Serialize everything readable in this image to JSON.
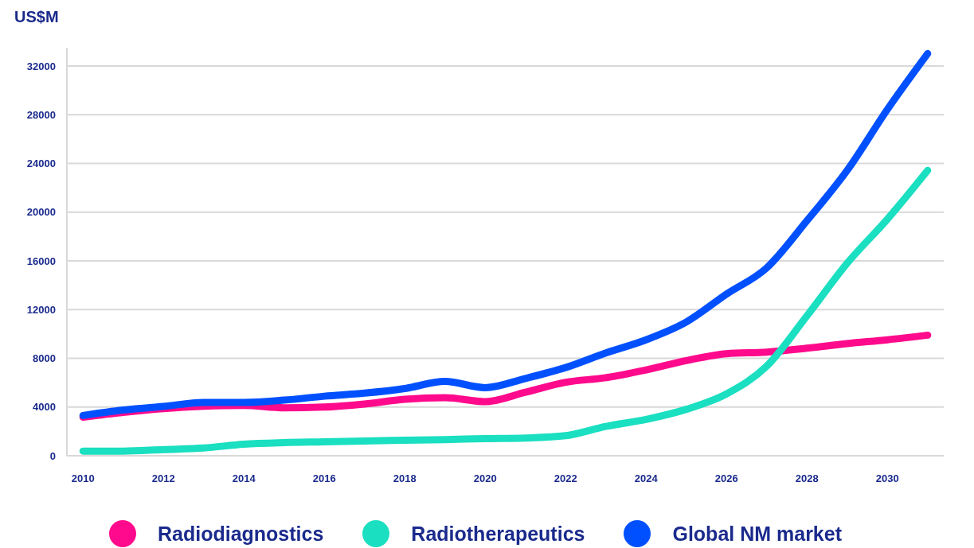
{
  "chart_data": {
    "type": "line",
    "ylabel": "US$M",
    "x": [
      2010,
      2011,
      2012,
      2013,
      2014,
      2015,
      2016,
      2017,
      2018,
      2019,
      2020,
      2021,
      2022,
      2023,
      2024,
      2025,
      2026,
      2027,
      2028,
      2029,
      2030,
      2031
    ],
    "series": [
      {
        "name": "Radiodiagnostics",
        "color": "#ff0a8c",
        "values": [
          3170,
          3560,
          3870,
          4060,
          4130,
          3940,
          4000,
          4250,
          4630,
          4760,
          4440,
          5210,
          6030,
          6410,
          7050,
          7810,
          8380,
          8510,
          8830,
          9210,
          9520,
          9900
        ]
      },
      {
        "name": "Radiotherapeutics",
        "color": "#1adfc0",
        "values": [
          380,
          380,
          510,
          630,
          950,
          1080,
          1140,
          1210,
          1270,
          1330,
          1400,
          1460,
          1650,
          2410,
          2980,
          3810,
          5080,
          7360,
          11490,
          15810,
          19430,
          23430
        ]
      },
      {
        "name": "Global NM market",
        "color": "#0050ff",
        "values": [
          3300,
          3750,
          4050,
          4380,
          4380,
          4570,
          4890,
          5140,
          5520,
          6100,
          5590,
          6350,
          7240,
          8440,
          9520,
          10980,
          13270,
          15430,
          19300,
          23430,
          28440,
          33020
        ]
      }
    ],
    "xlim": [
      2009.6,
      2031.4
    ],
    "xticks": [
      2010,
      2012,
      2014,
      2016,
      2018,
      2020,
      2022,
      2024,
      2026,
      2028,
      2030
    ],
    "ylim": [
      0,
      33500
    ],
    "yticks": [
      0,
      4000,
      8000,
      12000,
      16000,
      20000,
      24000,
      28000,
      32000
    ],
    "grid": "y",
    "legend": "bottom",
    "marker": "none",
    "line_style": "solid"
  }
}
